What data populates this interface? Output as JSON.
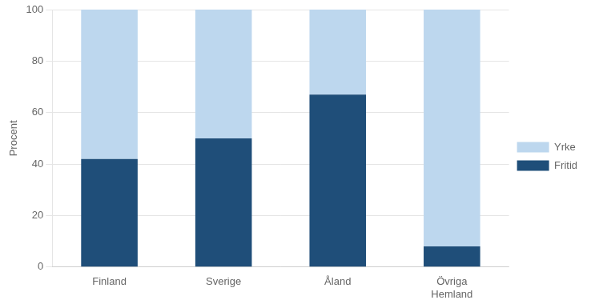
{
  "chart_data": {
    "type": "bar",
    "ylabel": "Procent",
    "categories": [
      "Finland",
      "Sverige",
      "Åland",
      "Övriga\nHemland"
    ],
    "series": [
      {
        "name": "Fritid",
        "color": "#1F4E79",
        "values": [
          42,
          50,
          67,
          8
        ]
      },
      {
        "name": "Yrke",
        "color": "#BDD7EE",
        "values": [
          58,
          50,
          33,
          92
        ]
      }
    ],
    "stacked": true,
    "ylim": [
      0,
      100
    ],
    "yticks": [
      0,
      20,
      40,
      60,
      80,
      100
    ],
    "grid": true,
    "legend": "right"
  }
}
